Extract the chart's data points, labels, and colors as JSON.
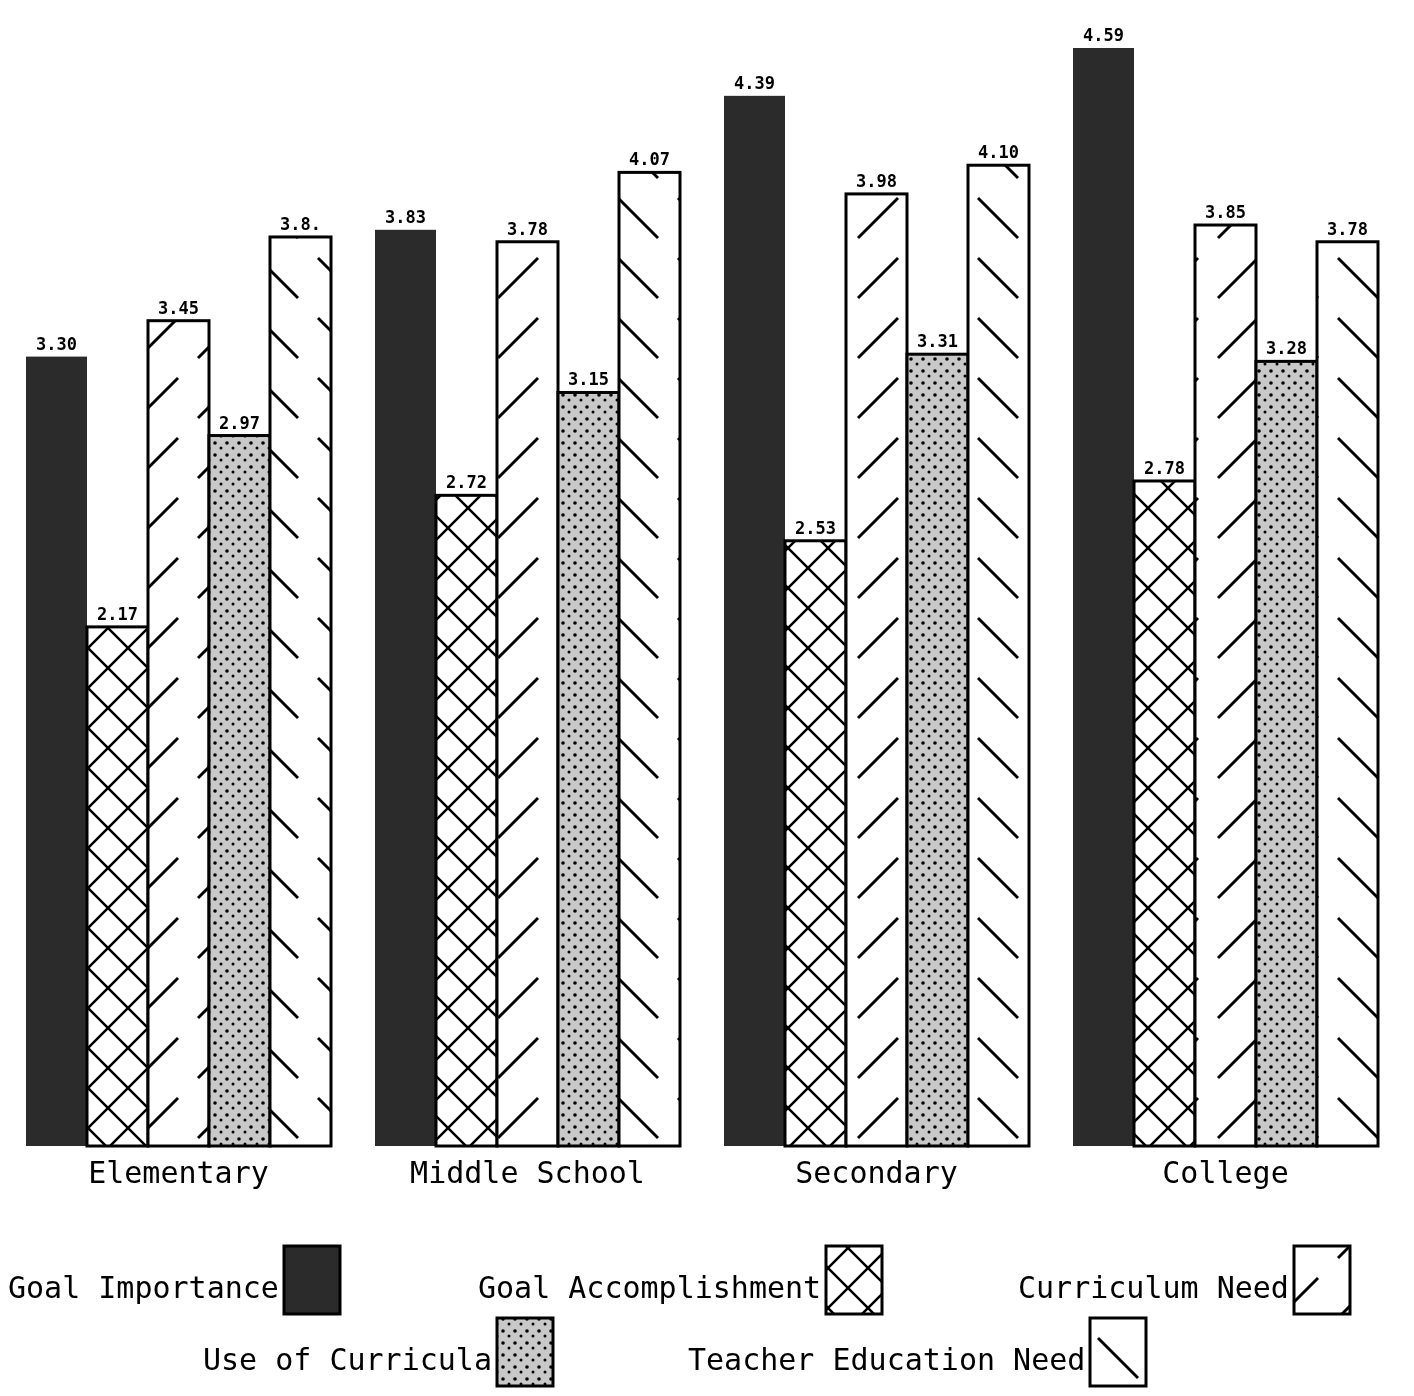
{
  "chart_data": {
    "type": "bar",
    "categories": [
      "Elementary",
      "Middle School",
      "Secondary",
      "College"
    ],
    "series": [
      {
        "name": "Goal Importance",
        "color": "#2b2b2b",
        "values": [
          3.3,
          3.83,
          4.39,
          4.59
        ],
        "value_labels": [
          "3.30",
          "3.83",
          "4.39",
          "4.59"
        ]
      },
      {
        "name": "Goal Accomplishment",
        "color": "#ffffff",
        "values": [
          2.17,
          2.72,
          2.53,
          2.78
        ],
        "value_labels": [
          "2.17",
          "2.72",
          "2.53",
          "2.78"
        ]
      },
      {
        "name": "Curriculum Need",
        "color": "#ffffff",
        "values": [
          3.45,
          3.78,
          3.98,
          3.85
        ],
        "value_labels": [
          "3.45",
          "3.78",
          "3.98",
          "3.85"
        ]
      },
      {
        "name": "Use of Curricula",
        "color": "#c8c8c8",
        "values": [
          2.97,
          3.15,
          3.31,
          3.28
        ],
        "value_labels": [
          "2.97",
          "3.15",
          "3.31",
          "3.28"
        ]
      },
      {
        "name": "Teacher Education Need",
        "color": "#ffffff",
        "values": [
          3.8,
          4.07,
          4.1,
          3.78
        ],
        "value_labels": [
          "3.8.",
          "4.07",
          "4.10",
          "3.78"
        ]
      }
    ],
    "tick_labels": "x",
    "legend": "bottom",
    "grid": false
  }
}
